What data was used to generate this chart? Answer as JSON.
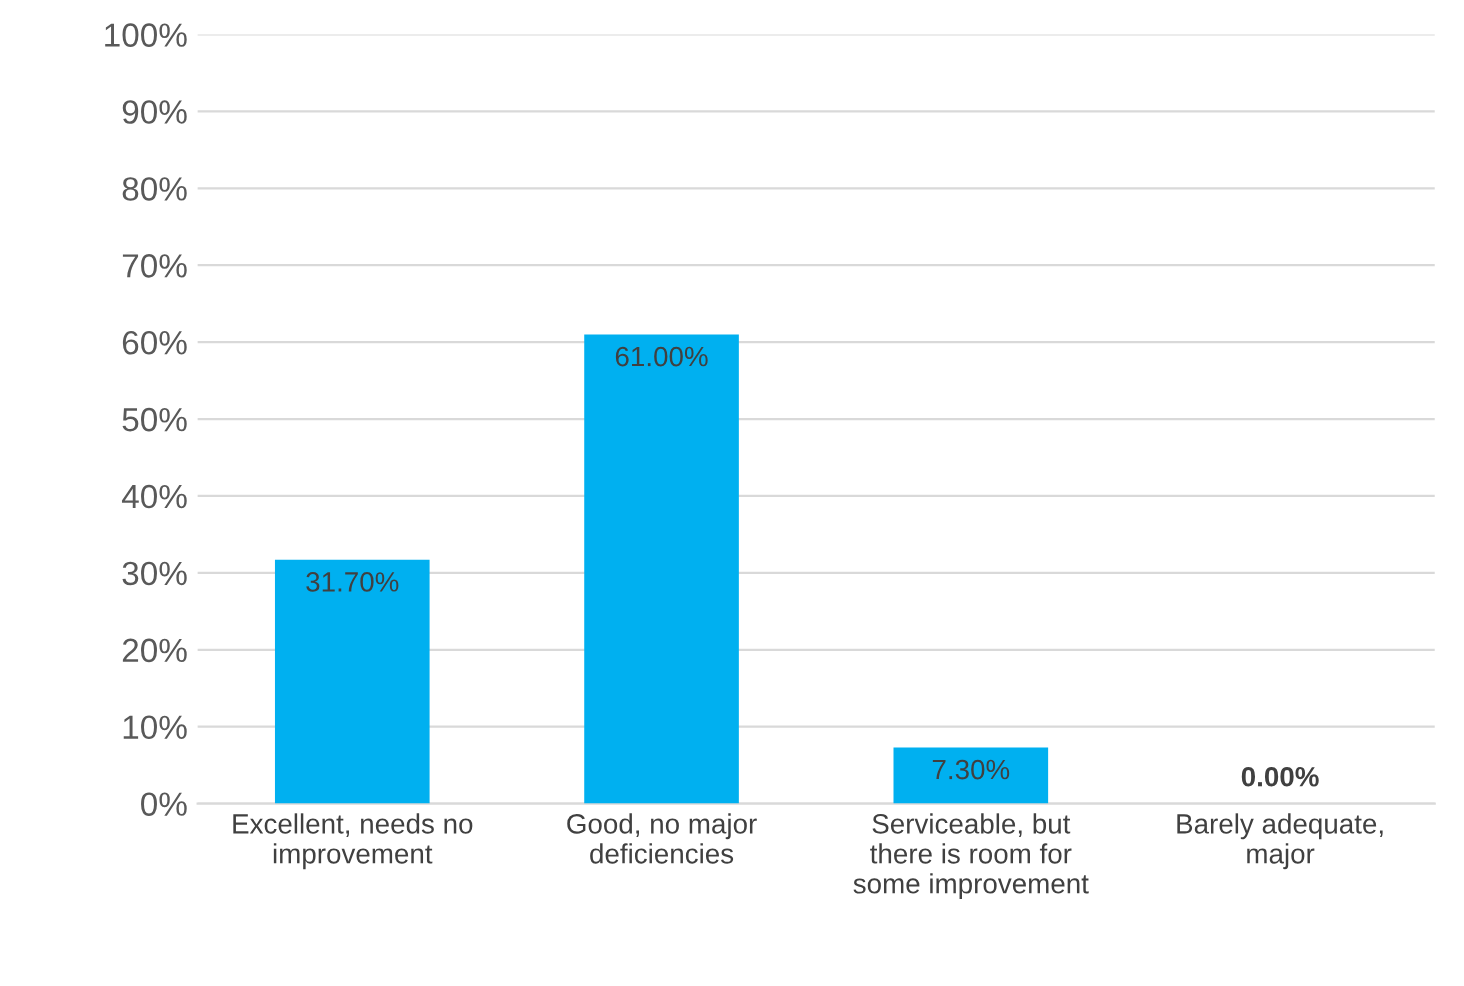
{
  "chart_data": {
    "type": "bar",
    "categories": [
      "Excellent, needs no\nimprovement",
      "Good, no major\ndeficiencies",
      "Serviceable, but\nthere is room for\nsome improvement",
      "Barely adequate,\nmajor"
    ],
    "values": [
      31.7,
      61.0,
      7.3,
      0.0
    ],
    "value_labels": [
      "31.70%",
      "61.00%",
      "7.30%",
      "0.00%"
    ],
    "color": "#00b0f0",
    "ylim": [
      0,
      100
    ],
    "yticks": [
      {
        "value": 0,
        "label": "0%"
      },
      {
        "value": 10,
        "label": "10%"
      },
      {
        "value": 20,
        "label": "20%"
      },
      {
        "value": 30,
        "label": "30%"
      },
      {
        "value": 40,
        "label": "40%"
      },
      {
        "value": 50,
        "label": "50%"
      },
      {
        "value": 60,
        "label": "60%"
      },
      {
        "value": 70,
        "label": "70%"
      },
      {
        "value": 80,
        "label": "80%"
      },
      {
        "value": 90,
        "label": "90%"
      },
      {
        "value": 100,
        "label": "100%"
      }
    ],
    "grid": "y"
  }
}
